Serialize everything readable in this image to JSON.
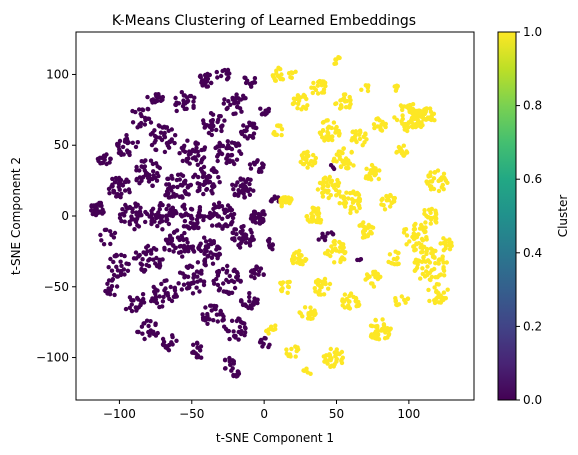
{
  "chart_data": {
    "type": "scatter",
    "title": "K-Means Clustering of Learned Embeddings",
    "xlabel": "t-SNE Component 1",
    "ylabel": "t-SNE Component 2",
    "xlim": [
      -130,
      145
    ],
    "ylim": [
      -130,
      130
    ],
    "xticks": [
      -100,
      -50,
      0,
      50,
      100
    ],
    "yticks": [
      -100,
      -50,
      0,
      50,
      100
    ],
    "grid": false,
    "colorbar": {
      "label": "Cluster",
      "colormap": "viridis",
      "range": [
        0,
        1
      ],
      "ticks": [
        "0.0",
        "0.2",
        "0.4",
        "0.6",
        "0.8",
        "1.0"
      ]
    },
    "series": [
      {
        "cluster": 0,
        "color": "#440154",
        "blobs": [
          [
            -115,
            5,
            5,
            30
          ],
          [
            -110,
            40,
            5,
            15
          ],
          [
            -108,
            -15,
            6,
            10
          ],
          [
            -105,
            -50,
            6,
            15
          ],
          [
            -100,
            20,
            8,
            35
          ],
          [
            -100,
            -35,
            8,
            25
          ],
          [
            -95,
            50,
            8,
            25
          ],
          [
            -90,
            -60,
            8,
            20
          ],
          [
            -90,
            0,
            10,
            40
          ],
          [
            -85,
            70,
            8,
            20
          ],
          [
            -80,
            30,
            10,
            40
          ],
          [
            -80,
            -30,
            10,
            40
          ],
          [
            -80,
            -80,
            8,
            20
          ],
          [
            -75,
            85,
            6,
            15
          ],
          [
            -70,
            0,
            10,
            50
          ],
          [
            -70,
            55,
            10,
            35
          ],
          [
            -70,
            -55,
            10,
            35
          ],
          [
            -65,
            -90,
            6,
            15
          ],
          [
            -60,
            20,
            10,
            45
          ],
          [
            -60,
            -20,
            10,
            45
          ],
          [
            -55,
            80,
            8,
            25
          ],
          [
            -50,
            45,
            10,
            40
          ],
          [
            -50,
            -45,
            10,
            40
          ],
          [
            -50,
            0,
            10,
            45
          ],
          [
            -45,
            -95,
            6,
            15
          ],
          [
            -40,
            95,
            6,
            20
          ],
          [
            -40,
            25,
            10,
            45
          ],
          [
            -40,
            -25,
            10,
            45
          ],
          [
            -35,
            65,
            8,
            30
          ],
          [
            -35,
            -70,
            8,
            30
          ],
          [
            -30,
            0,
            10,
            45
          ],
          [
            -28,
            100,
            5,
            12
          ],
          [
            -25,
            -105,
            5,
            15
          ],
          [
            -25,
            45,
            10,
            40
          ],
          [
            -25,
            -45,
            10,
            40
          ],
          [
            -20,
            80,
            8,
            25
          ],
          [
            -20,
            -80,
            8,
            25
          ],
          [
            -15,
            20,
            8,
            35
          ],
          [
            -15,
            -15,
            8,
            35
          ],
          [
            -10,
            60,
            6,
            25
          ],
          [
            -10,
            -60,
            6,
            25
          ],
          [
            -10,
            95,
            5,
            12
          ],
          [
            -5,
            0,
            6,
            30
          ],
          [
            -5,
            35,
            5,
            15
          ],
          [
            -5,
            -40,
            5,
            15
          ],
          [
            0,
            -90,
            4,
            10
          ],
          [
            0,
            75,
            4,
            10
          ],
          [
            5,
            -20,
            4,
            10
          ],
          [
            8,
            10,
            4,
            8
          ],
          [
            -20,
            -112,
            3,
            8
          ],
          [
            40,
            -15,
            3,
            5
          ],
          [
            45,
            -12,
            3,
            4
          ],
          [
            48,
            35,
            2,
            3
          ],
          [
            65,
            -30,
            2,
            3
          ]
        ]
      },
      {
        "cluster": 1,
        "color": "#fde725",
        "blobs": [
          [
            5,
            -80,
            4,
            10
          ],
          [
            10,
            60,
            4,
            10
          ],
          [
            10,
            100,
            5,
            15
          ],
          [
            15,
            -50,
            5,
            15
          ],
          [
            15,
            10,
            5,
            20
          ],
          [
            20,
            -95,
            5,
            12
          ],
          [
            25,
            80,
            6,
            20
          ],
          [
            25,
            -30,
            6,
            25
          ],
          [
            30,
            40,
            6,
            25
          ],
          [
            30,
            -70,
            6,
            20
          ],
          [
            35,
            0,
            6,
            30
          ],
          [
            38,
            90,
            6,
            20
          ],
          [
            40,
            -50,
            6,
            25
          ],
          [
            45,
            20,
            8,
            35
          ],
          [
            45,
            60,
            8,
            30
          ],
          [
            48,
            -100,
            7,
            35
          ],
          [
            50,
            -25,
            8,
            30
          ],
          [
            55,
            80,
            6,
            20
          ],
          [
            55,
            40,
            8,
            30
          ],
          [
            60,
            -60,
            7,
            25
          ],
          [
            60,
            10,
            8,
            35
          ],
          [
            65,
            55,
            6,
            20
          ],
          [
            70,
            -10,
            6,
            25
          ],
          [
            75,
            -45,
            6,
            20
          ],
          [
            75,
            30,
            6,
            25
          ],
          [
            80,
            -80,
            8,
            45
          ],
          [
            80,
            65,
            5,
            15
          ],
          [
            85,
            10,
            6,
            20
          ],
          [
            90,
            -30,
            5,
            15
          ],
          [
            95,
            45,
            5,
            15
          ],
          [
            100,
            70,
            10,
            60
          ],
          [
            110,
            70,
            8,
            40
          ],
          [
            105,
            -15,
            10,
            40
          ],
          [
            115,
            -35,
            12,
            60
          ],
          [
            120,
            25,
            8,
            30
          ],
          [
            115,
            0,
            6,
            20
          ],
          [
            120,
            -55,
            8,
            25
          ],
          [
            125,
            -20,
            5,
            15
          ],
          [
            95,
            -60,
            5,
            12
          ],
          [
            30,
            -110,
            3,
            5
          ],
          [
            20,
            100,
            3,
            6
          ],
          [
            70,
            90,
            3,
            6
          ],
          [
            90,
            90,
            3,
            5
          ],
          [
            50,
            110,
            3,
            6
          ]
        ]
      }
    ]
  }
}
